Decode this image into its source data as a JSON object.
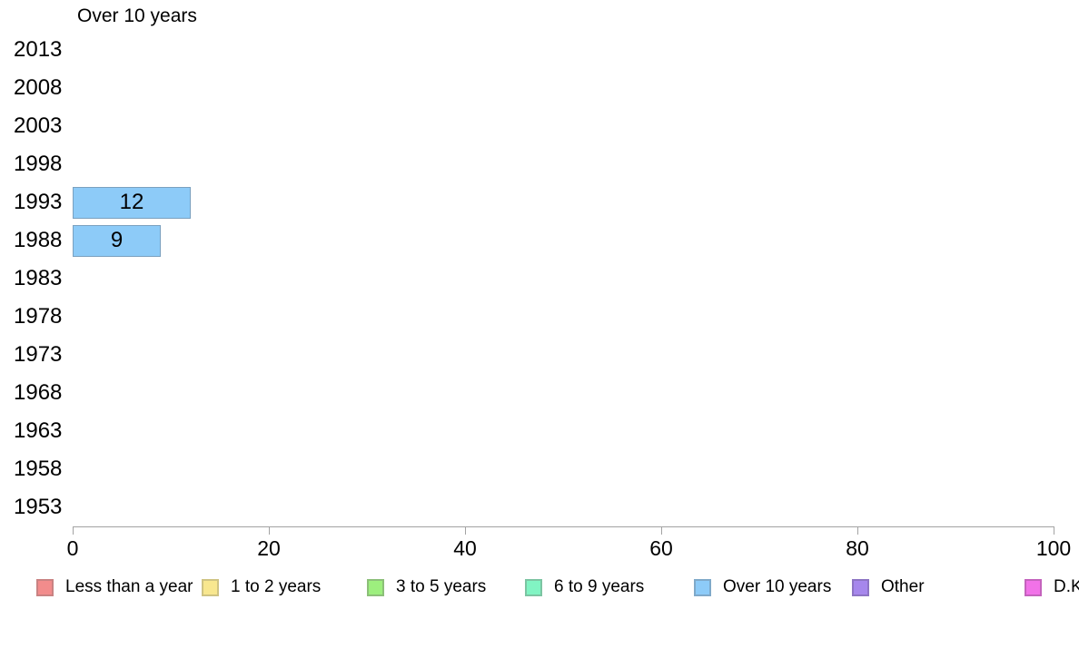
{
  "chart_data": {
    "type": "bar",
    "orientation": "horizontal",
    "title": "Over 10 years",
    "categories": [
      "2013",
      "2008",
      "2003",
      "1998",
      "1993",
      "1988",
      "1983",
      "1978",
      "1973",
      "1968",
      "1963",
      "1958",
      "1953"
    ],
    "values": [
      0,
      0,
      0,
      0,
      12,
      9,
      0,
      0,
      0,
      0,
      0,
      0,
      0
    ],
    "value_labels_shown": [
      "12",
      "9"
    ],
    "xlim": [
      0,
      100
    ],
    "x_ticks": [
      "0",
      "20",
      "40",
      "60",
      "80",
      "100"
    ],
    "grid": "off",
    "bar_fill": "#8dcbf8",
    "bar_border": "#7aa0bf",
    "axis_color": "#a3a3a3",
    "legend_position": "bottom",
    "legend": [
      {
        "label": "Less than a year",
        "fill": "#f28c8c",
        "border": "#c98282"
      },
      {
        "label": "1 to 2 years",
        "fill": "#f8e78f",
        "border": "#cfc382"
      },
      {
        "label": "3 to 5 years",
        "fill": "#9def7e",
        "border": "#8cbf79"
      },
      {
        "label": "6 to 9 years",
        "fill": "#81f4c3",
        "border": "#7cc4a2"
      },
      {
        "label": "Over 10 years",
        "fill": "#8dcbf8",
        "border": "#7fa9c9"
      },
      {
        "label": "Other",
        "fill": "#a687ec",
        "border": "#8d74c4"
      },
      {
        "label": "D.K.",
        "fill": "#f172e8",
        "border": "#c463bd"
      }
    ]
  }
}
